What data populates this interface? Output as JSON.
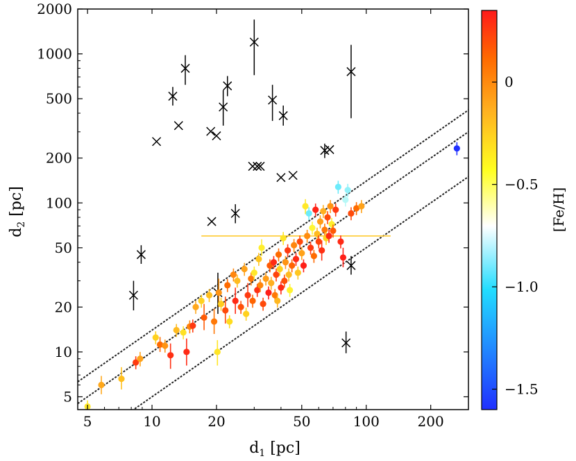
{
  "chart_data": {
    "type": "scatter",
    "scale": "log-log",
    "xlabel": "d1 [pc]",
    "ylabel": "d2 [pc]",
    "xlabel_parts": {
      "base": "d",
      "sub": "1",
      "unit": " [pc]"
    },
    "ylabel_parts": {
      "base": "d",
      "sub": "2",
      "unit": " [pc]"
    },
    "xlim": [
      4.5,
      300
    ],
    "ylim": [
      4.1,
      2000
    ],
    "xticks": [
      5,
      10,
      20,
      50,
      100,
      200
    ],
    "xtick_labels": [
      "5",
      "10",
      "20",
      "50",
      "100",
      "200"
    ],
    "yticks": [
      5,
      10,
      20,
      50,
      100,
      200,
      500,
      1000,
      2000
    ],
    "ytick_labels": [
      "5",
      "10",
      "20",
      "50",
      "100",
      "200",
      "500",
      "1000",
      "2000"
    ],
    "ratio_lines": [
      {
        "name": "upper",
        "factor": 1.4
      },
      {
        "name": "one-to-one",
        "factor": 1.0
      },
      {
        "name": "lower",
        "factor": 0.5
      }
    ],
    "colorbar": {
      "label": "[Fe/H]",
      "range": [
        -1.6,
        0.35
      ],
      "ticks": [
        0,
        -0.5,
        -1.0,
        -1.5
      ],
      "tick_labels": [
        "0",
        "−0.5",
        "−1.0",
        "−1.5"
      ]
    },
    "outliers_cross": [
      {
        "x": 8.2,
        "y": 24,
        "ylo": 19,
        "yhi": 30
      },
      {
        "x": 8.9,
        "y": 45,
        "ylo": 39,
        "yhi": 52
      },
      {
        "x": 10.5,
        "y": 258
      },
      {
        "x": 12.5,
        "y": 520,
        "ylo": 450,
        "yhi": 600
      },
      {
        "x": 13.3,
        "y": 330
      },
      {
        "x": 14.3,
        "y": 800,
        "ylo": 620,
        "yhi": 980
      },
      {
        "x": 18.8,
        "y": 302
      },
      {
        "x": 19.0,
        "y": 75
      },
      {
        "x": 20.0,
        "y": 282
      },
      {
        "x": 20.3,
        "y": 25,
        "ylo": 18,
        "yhi": 34
      },
      {
        "x": 21.5,
        "y": 440,
        "ylo": 330,
        "yhi": 570
      },
      {
        "x": 22.5,
        "y": 610,
        "ylo": 520,
        "yhi": 710
      },
      {
        "x": 24.5,
        "y": 85,
        "ylo": 73,
        "yhi": 98
      },
      {
        "x": 29.5,
        "y": 176
      },
      {
        "x": 30.0,
        "y": 1200,
        "ylo": 720,
        "yhi": 1700
      },
      {
        "x": 31.0,
        "y": 176
      },
      {
        "x": 32.0,
        "y": 176
      },
      {
        "x": 36.5,
        "y": 490,
        "ylo": 355,
        "yhi": 620
      },
      {
        "x": 40.0,
        "y": 148
      },
      {
        "x": 41.0,
        "y": 385,
        "ylo": 330,
        "yhi": 450
      },
      {
        "x": 45.5,
        "y": 153
      },
      {
        "x": 64.0,
        "y": 225,
        "ylo": 200,
        "yhi": 250
      },
      {
        "x": 67.5,
        "y": 228
      },
      {
        "x": 80.5,
        "y": 11.5,
        "ylo": 9.8,
        "yhi": 13.7
      },
      {
        "x": 85.0,
        "y": 38,
        "ylo": 33,
        "yhi": 44
      },
      {
        "x": 85.0,
        "y": 760,
        "ylo": 370,
        "yhi": 1150
      }
    ],
    "points": [
      {
        "x": 5.0,
        "y": 4.3,
        "feh": -0.42
      },
      {
        "x": 5.8,
        "y": 6.0,
        "feh": -0.12,
        "ylo": 5.2,
        "yhi": 6.9
      },
      {
        "x": 7.2,
        "y": 6.6,
        "feh": -0.22,
        "ylo": 5.6,
        "yhi": 7.9
      },
      {
        "x": 8.4,
        "y": 8.5,
        "feh": 0.25
      },
      {
        "x": 8.8,
        "y": 9.0,
        "feh": -0.1,
        "ylo": 8.0,
        "yhi": 10.0
      },
      {
        "x": 10.4,
        "y": 12.5,
        "feh": -0.3
      },
      {
        "x": 10.9,
        "y": 11.2,
        "feh": 0.1,
        "ylo": 10.0,
        "yhi": 12.6
      },
      {
        "x": 11.5,
        "y": 11.0,
        "feh": -0.05
      },
      {
        "x": 12.2,
        "y": 9.5,
        "feh": 0.28,
        "ylo": 7.7,
        "yhi": 11.4
      },
      {
        "x": 13.0,
        "y": 14.0,
        "feh": -0.2
      },
      {
        "x": 14.0,
        "y": 13.5,
        "feh": -0.38
      },
      {
        "x": 14.5,
        "y": 10.0,
        "feh": 0.3,
        "ylo": 8.1,
        "yhi": 12.3
      },
      {
        "x": 15.0,
        "y": 14.8,
        "feh": 0.0
      },
      {
        "x": 15.5,
        "y": 15.0,
        "feh": 0.25
      },
      {
        "x": 16.0,
        "y": 20.0,
        "feh": -0.12
      },
      {
        "x": 17.0,
        "y": 22.0,
        "feh": -0.3
      },
      {
        "x": 17.5,
        "y": 17.0,
        "feh": 0.15,
        "ylo": 14.0,
        "yhi": 21.0
      },
      {
        "x": 18.5,
        "y": 24.0,
        "feh": -0.22
      },
      {
        "x": 19.5,
        "y": 16.0,
        "feh": 0.05,
        "ylo": 13.2,
        "yhi": 19.5
      },
      {
        "x": 20.2,
        "y": 10.0,
        "feh": -0.4,
        "ylo": 8.1,
        "yhi": 12.0
      },
      {
        "x": 20.5,
        "y": 25.0,
        "feh": -0.05,
        "ylo": 20.0,
        "yhi": 31.0
      },
      {
        "x": 21.0,
        "y": 21.0,
        "feh": -0.28
      },
      {
        "x": 22.0,
        "y": 19.0,
        "feh": 0.2,
        "ylo": 15.5,
        "yhi": 23.5
      },
      {
        "x": 22.5,
        "y": 28.0,
        "feh": 0.1
      },
      {
        "x": 23.0,
        "y": 16.0,
        "feh": -0.35
      },
      {
        "x": 24.0,
        "y": 33.0,
        "feh": 0.0
      },
      {
        "x": 24.5,
        "y": 22.0,
        "feh": 0.3,
        "ylo": 18.0,
        "yhi": 27.0
      },
      {
        "x": 25.0,
        "y": 30.0,
        "feh": -0.2
      },
      {
        "x": 26.0,
        "y": 20.0,
        "feh": 0.18
      },
      {
        "x": 27.0,
        "y": 36.0,
        "feh": -0.1
      },
      {
        "x": 27.5,
        "y": 18.0,
        "feh": -0.3
      },
      {
        "x": 28.0,
        "y": 24.0,
        "feh": 0.25,
        "ylo": 20.0,
        "yhi": 29.0
      },
      {
        "x": 29.0,
        "y": 31.0,
        "feh": 0.05
      },
      {
        "x": 29.5,
        "y": 22.0,
        "feh": 0.12
      },
      {
        "x": 30.0,
        "y": 34.0,
        "feh": -0.42
      },
      {
        "x": 31.0,
        "y": 26.0,
        "feh": 0.28
      },
      {
        "x": 31.5,
        "y": 42.0,
        "feh": -0.25
      },
      {
        "x": 32.0,
        "y": 28.0,
        "feh": 0.0
      },
      {
        "x": 32.5,
        "y": 50.0,
        "feh": -0.45,
        "ylo": 44.0,
        "yhi": 57.0
      },
      {
        "x": 33.0,
        "y": 21.0,
        "feh": 0.2
      },
      {
        "x": 34.0,
        "y": 31.0,
        "feh": -0.08
      },
      {
        "x": 35.0,
        "y": 25.0,
        "feh": 0.33
      },
      {
        "x": 35.5,
        "y": 38.0,
        "feh": 0.15
      },
      {
        "x": 36.0,
        "y": 29.0,
        "feh": -0.15
      },
      {
        "x": 37.0,
        "y": 40.0,
        "feh": 0.3
      },
      {
        "x": 37.5,
        "y": 24.0,
        "feh": 0.05
      },
      {
        "x": 38.0,
        "y": 33.0,
        "feh": 0.22
      },
      {
        "x": 38.5,
        "y": 22.0,
        "feh": -0.18
      },
      {
        "x": 39.0,
        "y": 45.0,
        "feh": 0.1
      },
      {
        "x": 39.5,
        "y": 36.0,
        "feh": -0.3
      },
      {
        "x": 40.0,
        "y": 27.0,
        "feh": 0.3
      },
      {
        "x": 41.0,
        "y": 58.0,
        "feh": -0.4
      },
      {
        "x": 41.5,
        "y": 30.0,
        "feh": 0.18
      },
      {
        "x": 42.0,
        "y": 40.0,
        "feh": -0.05
      },
      {
        "x": 43.0,
        "y": 48.0,
        "feh": 0.25
      },
      {
        "x": 43.5,
        "y": 33.0,
        "feh": -0.2
      },
      {
        "x": 44.0,
        "y": 26.0,
        "feh": -0.48
      },
      {
        "x": 45.0,
        "y": 38.0,
        "feh": 0.12
      },
      {
        "x": 46.0,
        "y": 52.0,
        "feh": 0.0
      },
      {
        "x": 47.0,
        "y": 42.0,
        "feh": 0.3
      },
      {
        "x": 48.0,
        "y": 34.0,
        "feh": -0.25
      },
      {
        "x": 49.0,
        "y": 55.0,
        "feh": 0.2
      },
      {
        "x": 50.0,
        "y": 46.0,
        "feh": -0.1
      },
      {
        "x": 51.0,
        "y": 38.0,
        "feh": 0.33
      },
      {
        "x": 52.0,
        "y": 95.0,
        "feh": -0.42,
        "ylo": 84.0,
        "yhi": 106.0
      },
      {
        "x": 53.0,
        "y": 60.0,
        "feh": -0.02
      },
      {
        "x": 54.0,
        "y": 85.0,
        "feh": -0.85
      },
      {
        "x": 55.0,
        "y": 50.0,
        "feh": 0.25
      },
      {
        "x": 56.0,
        "y": 68.0,
        "feh": -0.5
      },
      {
        "x": 57.0,
        "y": 44.0,
        "feh": 0.1
      },
      {
        "x": 58.0,
        "y": 90.0,
        "feh": 0.32
      },
      {
        "x": 59.0,
        "y": 62.0,
        "feh": -0.2
      },
      {
        "x": 60.0,
        "y": 55.0,
        "feh": 0.22
      },
      {
        "x": 61.0,
        "y": 75.0,
        "feh": -0.08
      },
      {
        "x": 62.0,
        "y": 48.0,
        "feh": 0.28,
        "ylo": 41.0,
        "yhi": 56.0
      },
      {
        "x": 63.0,
        "y": 88.0,
        "feh": -0.15
      },
      {
        "x": 64.0,
        "y": 66.0,
        "feh": 0.05
      },
      {
        "x": 65.0,
        "y": 58.0,
        "feh": -0.3
      },
      {
        "x": 66.0,
        "y": 80.0,
        "feh": 0.2
      },
      {
        "x": 67.0,
        "y": 60.0,
        "feh": 0.3
      },
      {
        "x": 68.0,
        "y": 95.0,
        "feh": -0.05
      },
      {
        "x": 69.0,
        "y": 72.0,
        "feh": -0.45
      },
      {
        "x": 70.0,
        "y": 65.0,
        "feh": 0.15
      },
      {
        "x": 72.0,
        "y": 90.0,
        "feh": 0.25
      },
      {
        "x": 74.0,
        "y": 128.0,
        "feh": -0.85
      },
      {
        "x": 76.0,
        "y": 55.0,
        "feh": 0.3
      },
      {
        "x": 78.0,
        "y": 43.0,
        "feh": 0.33,
        "ylo": 37.0,
        "yhi": 50.0
      },
      {
        "x": 80.0,
        "y": 105.0,
        "feh": -0.75
      },
      {
        "x": 82.0,
        "y": 122.0,
        "feh": -0.8
      },
      {
        "x": 85.0,
        "y": 85.0,
        "feh": 0.2
      },
      {
        "x": 90.0,
        "y": 92.0,
        "feh": 0.1
      },
      {
        "x": 95.0,
        "y": 95.0,
        "feh": -0.1
      },
      {
        "x": 265.0,
        "y": 232.0,
        "feh": -1.6
      }
    ],
    "xerror_bar": {
      "y": 60,
      "xlo": 17,
      "xhi": 130,
      "feh": -0.25
    }
  }
}
